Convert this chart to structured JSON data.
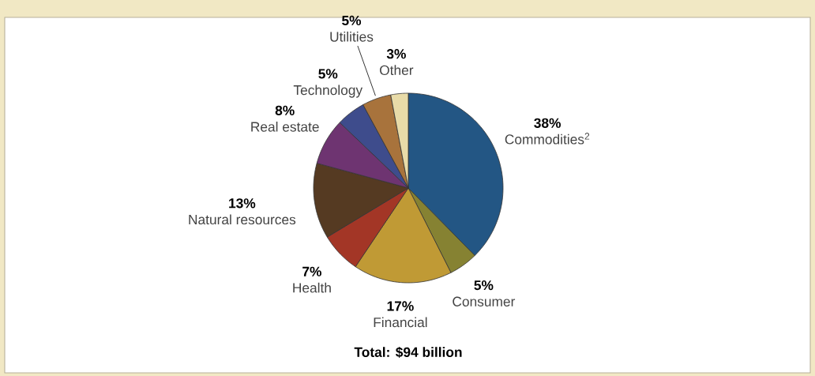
{
  "chart_data": {
    "type": "pie",
    "categories": [
      "Commodities$^{2}$",
      "Consumer",
      "Financial",
      "Health",
      "Natural resources",
      "Real estate",
      "Technology",
      "Utilities",
      "Other"
    ],
    "values": [
      38,
      5,
      17,
      7,
      13,
      8,
      5,
      5,
      3
    ],
    "value_labels": [
      "38%",
      "5%",
      "17%",
      "7%",
      "13%",
      "8%",
      "5%",
      "5%",
      "3%"
    ],
    "colors": [
      "#235684",
      "#868232",
      "#c09a35",
      "#a33626",
      "#553a22",
      "#6e3471",
      "#3e4c8c",
      "#a8733c",
      "#e8dba8"
    ],
    "annotations": [
      "Total: $94 billion"
    ]
  }
}
